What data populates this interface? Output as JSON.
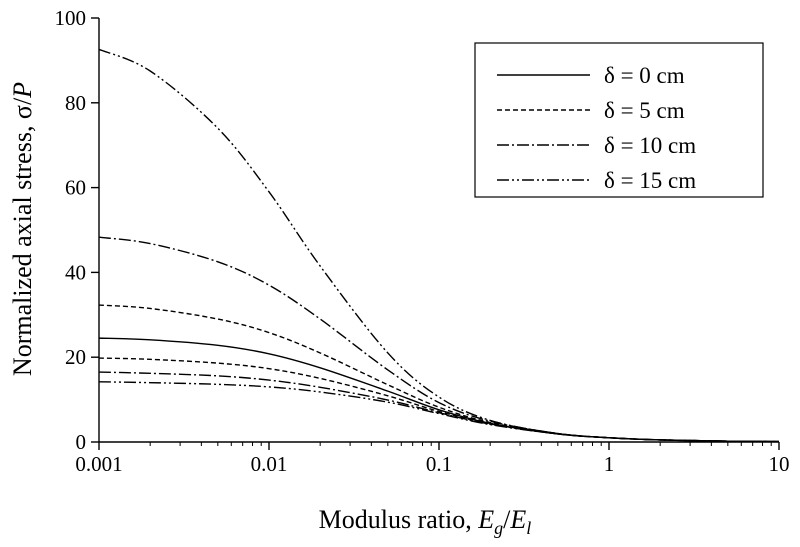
{
  "chart_data": {
    "type": "line",
    "title": "",
    "xlabel": {
      "prefix": "Modulus ratio, ",
      "num": "E",
      "num_sub": "g",
      "sep": "/",
      "den": "E",
      "den_sub": "l"
    },
    "ylabel": {
      "prefix": "Normalized axial stress, ",
      "expr": "σ/",
      "var": "P"
    },
    "x_scale": "log",
    "xlim": [
      0.001,
      10
    ],
    "ylim": [
      0,
      100
    ],
    "x_ticks": [
      0.001,
      0.01,
      0.1,
      1,
      10
    ],
    "x_tick_labels": [
      "0.001",
      "0.01",
      "0.1",
      "1",
      "10"
    ],
    "y_ticks": [
      0,
      20,
      40,
      60,
      80,
      100
    ],
    "y_tick_labels": [
      "0",
      "20",
      "40",
      "60",
      "80",
      "100"
    ],
    "grid": false,
    "legend_position": "top-right",
    "legend_labels": [
      "δ =   0 cm",
      "δ =   5 cm",
      "δ = 10 cm",
      "δ = 15 cm"
    ],
    "x": [
      0.001,
      0.002,
      0.005,
      0.01,
      0.02,
      0.05,
      0.1,
      0.2,
      0.5,
      1,
      2,
      5,
      10
    ],
    "series": [
      {
        "dash": "solid",
        "upper": [
          24.5,
          24.1,
          22.8,
          20.8,
          17.5,
          12.0,
          7.6,
          4.4,
          1.9,
          1.0,
          0.5,
          0.2,
          0.1
        ]
      },
      {
        "dash": "dash",
        "upper": [
          32.3,
          31.5,
          29.0,
          25.8,
          21.0,
          13.5,
          8.2,
          4.6,
          2.0,
          1.0,
          0.5,
          0.2,
          0.1
        ],
        "lower": [
          19.8,
          19.5,
          18.6,
          17.3,
          15.0,
          10.9,
          7.2,
          4.3,
          1.9,
          1.0,
          0.5,
          0.2,
          0.1
        ]
      },
      {
        "dash": "dashdot",
        "upper": [
          48.3,
          46.8,
          42.5,
          37.0,
          29.0,
          17.0,
          9.3,
          4.9,
          2.0,
          1.0,
          0.5,
          0.2,
          0.1
        ],
        "lower": [
          16.5,
          16.2,
          15.6,
          14.6,
          12.9,
          9.9,
          6.9,
          4.2,
          1.9,
          1.0,
          0.5,
          0.2,
          0.1
        ]
      },
      {
        "dash": "dashdotdot",
        "upper": [
          92.6,
          87.5,
          74.0,
          59.0,
          41.5,
          21.0,
          10.6,
          5.1,
          2.0,
          1.0,
          0.5,
          0.2,
          0.1
        ],
        "lower": [
          14.2,
          14.0,
          13.6,
          13.0,
          11.8,
          9.4,
          6.7,
          4.1,
          1.9,
          1.0,
          0.5,
          0.2,
          0.1
        ]
      }
    ]
  }
}
